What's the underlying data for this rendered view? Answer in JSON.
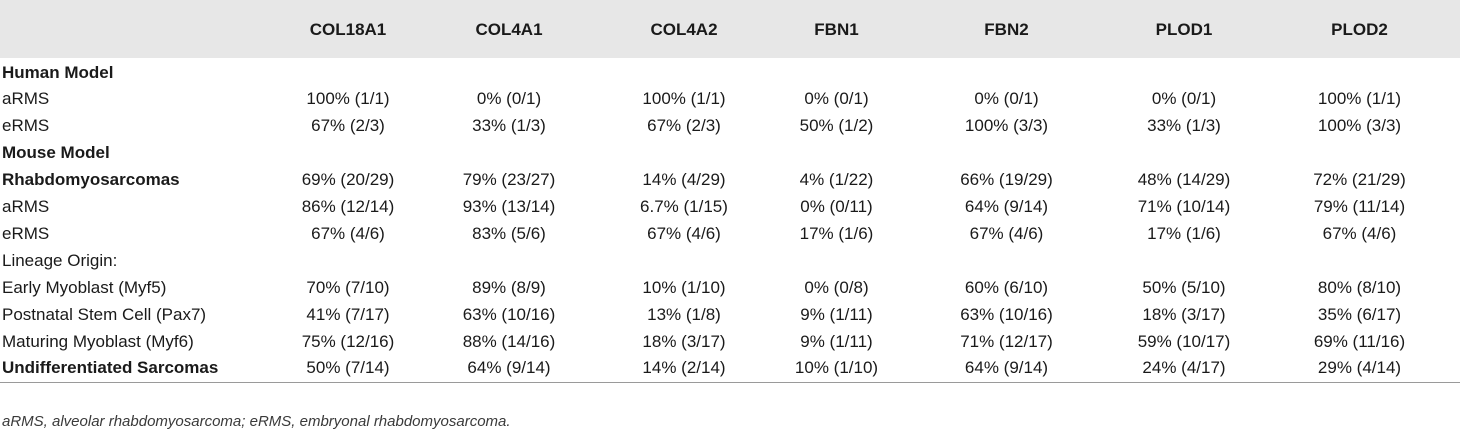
{
  "columns": [
    "",
    "COL18A1",
    "COL4A1",
    "COL4A2",
    "FBN1",
    "FBN2",
    "PLOD1",
    "PLOD2"
  ],
  "rows": [
    {
      "label": "Human Model",
      "bold": true,
      "values": [
        "",
        "",
        "",
        "",
        "",
        "",
        ""
      ]
    },
    {
      "label": "aRMS",
      "bold": false,
      "values": [
        "100% (1/1)",
        "0% (0/1)",
        "100% (1/1)",
        "0% (0/1)",
        "0% (0/1)",
        "0% (0/1)",
        "100% (1/1)"
      ]
    },
    {
      "label": "eRMS",
      "bold": false,
      "values": [
        "67% (2/3)",
        "33% (1/3)",
        "67% (2/3)",
        "50% (1/2)",
        "100% (3/3)",
        "33% (1/3)",
        "100% (3/3)"
      ]
    },
    {
      "label": "Mouse Model",
      "bold": true,
      "values": [
        "",
        "",
        "",
        "",
        "",
        "",
        ""
      ]
    },
    {
      "label": "Rhabdomyosarcomas",
      "bold": true,
      "values": [
        "69% (20/29)",
        "79% (23/27)",
        "14% (4/29)",
        "4% (1/22)",
        "66% (19/29)",
        "48% (14/29)",
        "72% (21/29)"
      ]
    },
    {
      "label": "aRMS",
      "bold": false,
      "values": [
        "86% (12/14)",
        "93% (13/14)",
        "6.7% (1/15)",
        "0% (0/11)",
        "64% (9/14)",
        "71% (10/14)",
        "79% (11/14)"
      ]
    },
    {
      "label": "eRMS",
      "bold": false,
      "values": [
        "67% (4/6)",
        "83% (5/6)",
        "67% (4/6)",
        "17% (1/6)",
        "67% (4/6)",
        "17% (1/6)",
        "67% (4/6)"
      ]
    },
    {
      "label": "Lineage Origin:",
      "bold": false,
      "values": [
        "",
        "",
        "",
        "",
        "",
        "",
        ""
      ]
    },
    {
      "label": "Early Myoblast (Myf5)",
      "bold": false,
      "values": [
        "70% (7/10)",
        "89% (8/9)",
        "10% (1/10)",
        "0% (0/8)",
        "60% (6/10)",
        "50% (5/10)",
        "80% (8/10)"
      ]
    },
    {
      "label": "Postnatal Stem Cell (Pax7)",
      "bold": false,
      "values": [
        "41% (7/17)",
        "63% (10/16)",
        "13% (1/8)",
        "9% (1/11)",
        "63% (10/16)",
        "18% (3/17)",
        "35% (6/17)"
      ]
    },
    {
      "label": "Maturing Myoblast (Myf6)",
      "bold": false,
      "values": [
        "75% (12/16)",
        "88% (14/16)",
        "18% (3/17)",
        "9% (1/11)",
        "71% (12/17)",
        "59% (10/17)",
        "69% (11/16)"
      ]
    },
    {
      "label": "Undifferentiated Sarcomas",
      "bold": true,
      "values": [
        "50% (7/14)",
        "64% (9/14)",
        "14% (2/14)",
        "10% (1/10)",
        "64% (9/14)",
        "24% (4/17)",
        "29% (4/14)"
      ]
    }
  ],
  "footnote": "aRMS, alveolar rhabdomyosarcoma; eRMS, embryonal rhabdomyosarcoma.",
  "colors": {
    "header_background": "#e7e7e7",
    "rule": "#9a9a9a"
  }
}
